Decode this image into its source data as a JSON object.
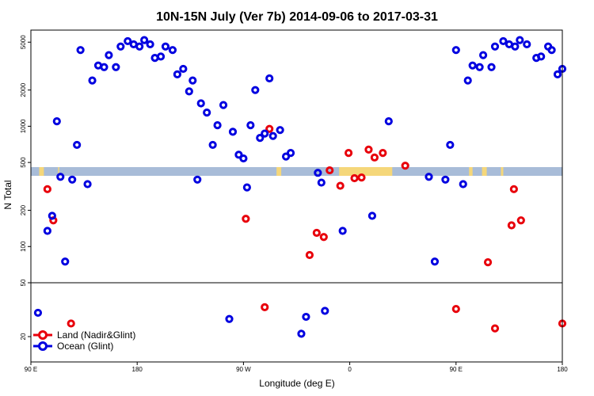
{
  "chart_data": {
    "type": "scatter",
    "title": "10N-15N July (Ver 7b)   2014-09-06 to 2017-03-31",
    "xlabel": "Longitude (deg E)",
    "ylabel": "N Total",
    "x_ticks": [
      {
        "value": 90,
        "label": "90 E"
      },
      {
        "value": 180,
        "label": "180"
      },
      {
        "value": 270,
        "label": "90 W"
      },
      {
        "value": 360,
        "label": "0"
      },
      {
        "value": 450,
        "label": "90 E"
      },
      {
        "value": 540,
        "label": "180"
      }
    ],
    "xlim": [
      90,
      540
    ],
    "y_scale": "log",
    "upper_panel": {
      "ylim": [
        50,
        6300
      ],
      "y_ticks": [
        {
          "value": 50,
          "label": "50"
        },
        {
          "value": 100,
          "label": "100"
        },
        {
          "value": 200,
          "label": "200"
        },
        {
          "value": 500,
          "label": "500"
        },
        {
          "value": 1000,
          "label": "1000"
        },
        {
          "value": 2000,
          "label": "2000"
        },
        {
          "value": 5000,
          "label": "5000"
        }
      ]
    },
    "lower_panel": {
      "ylim": [
        13,
        50
      ],
      "y_ticks": [
        {
          "value": 20,
          "label": "20"
        },
        {
          "value": 50,
          "label": "50"
        }
      ]
    },
    "map_strip": {
      "ocean_color": "#a8bcd8",
      "land_color": "#f5d77a"
    },
    "series": [
      {
        "name": "Land (Nadir&Glint)",
        "color": "#e8000b",
        "x": [
          104,
          109,
          124,
          272,
          288,
          292,
          326,
          332,
          338,
          343,
          352,
          359,
          364,
          370,
          376,
          381,
          388,
          407,
          450,
          477,
          483,
          497,
          499,
          505,
          540
        ],
        "y": [
          300,
          165,
          25,
          170,
          33,
          950,
          85,
          130,
          120,
          430,
          320,
          600,
          370,
          375,
          640,
          550,
          600,
          470,
          32,
          74,
          23,
          150,
          300,
          165,
          25
        ]
      },
      {
        "name": "Ocean (Glint)",
        "color": "#0000e0",
        "x": [
          96,
          104,
          108,
          112,
          115,
          119,
          125,
          129,
          132,
          138,
          142,
          147,
          152,
          156,
          162,
          166,
          172,
          177,
          182,
          186,
          191,
          195,
          200,
          204,
          210,
          214,
          219,
          224,
          227,
          231,
          234,
          239,
          244,
          248,
          253,
          258,
          261,
          266,
          270,
          273,
          276,
          280,
          284,
          288,
          292,
          295,
          301,
          306,
          310,
          319,
          323,
          333,
          336,
          339,
          354,
          379,
          393,
          427,
          432,
          441,
          445,
          450,
          456,
          460,
          464,
          470,
          473,
          480,
          483,
          490,
          495,
          500,
          504,
          510,
          518,
          522,
          528,
          531,
          536,
          540
        ],
        "y": [
          30,
          135,
          180,
          1100,
          380,
          75,
          360,
          700,
          4300,
          330,
          2400,
          3200,
          3100,
          3900,
          3100,
          4600,
          5100,
          4800,
          4600,
          5200,
          4800,
          3700,
          3800,
          4600,
          4300,
          2700,
          3000,
          1950,
          2400,
          360,
          1550,
          1300,
          700,
          1020,
          1500,
          27,
          900,
          580,
          540,
          310,
          1020,
          2000,
          800,
          870,
          2500,
          830,
          930,
          560,
          600,
          21,
          28,
          410,
          340,
          31,
          135,
          180,
          1100,
          380,
          75,
          360,
          700,
          4300,
          330,
          2400,
          3200,
          3100,
          3900,
          3100,
          4600,
          5100,
          4800,
          4600,
          5200,
          4800,
          3700,
          3800,
          4600,
          4300,
          2700,
          3000
        ],
        "note_x_wrap": false
      }
    ],
    "legend": {
      "placement": "bottom-left",
      "entries": [
        "Land (Nadir&Glint)",
        "Ocean (Glint)"
      ]
    }
  }
}
